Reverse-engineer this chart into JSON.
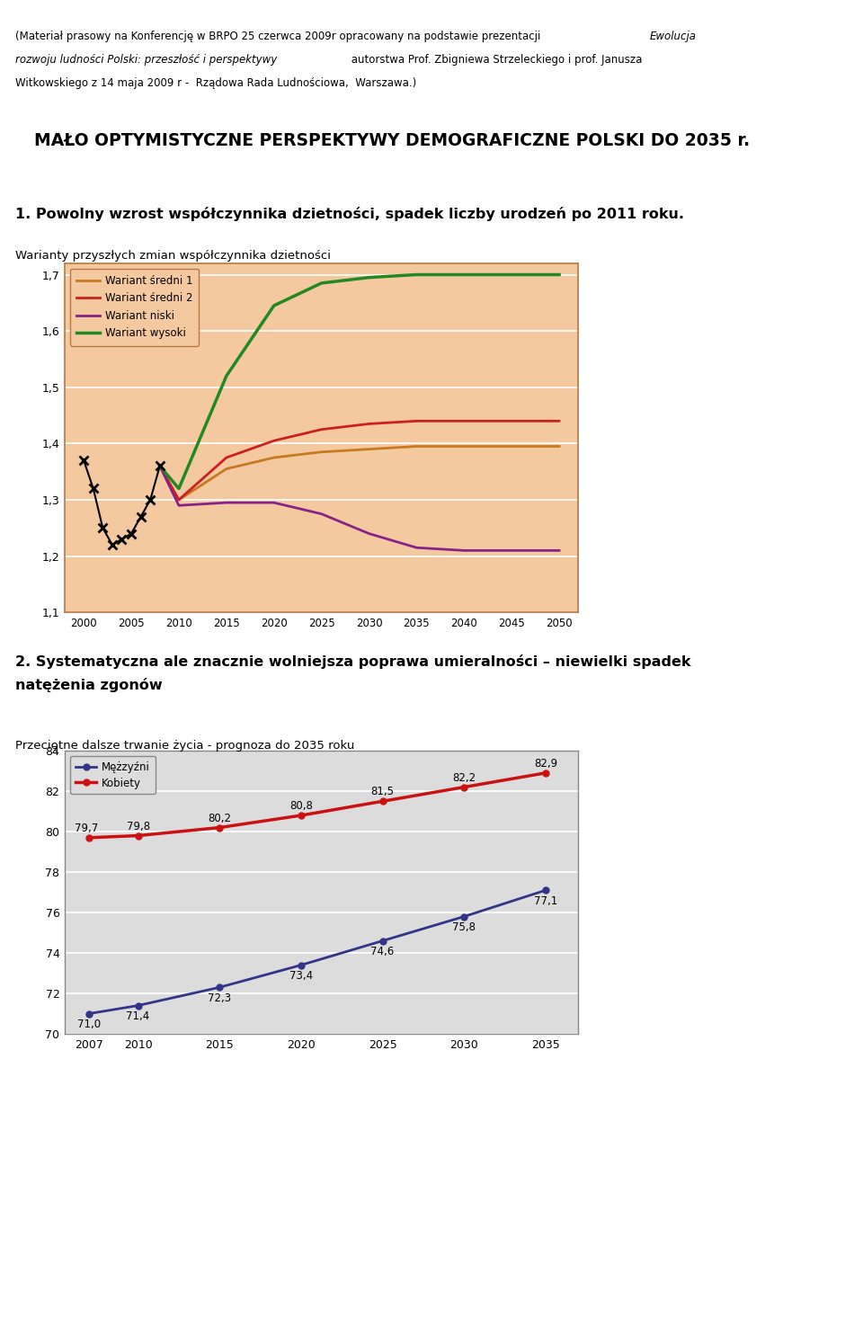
{
  "header_line1": "(Materiał prasowy na Konferencję w BRPO 25 czerwca 2009r opracowany na podstawie prezentacji ",
  "header_italic": "Ewolucja",
  "header_line2": "rozwoju ludności Polski: przeszłość i perspektywy",
  "header_line2b": " autorstwa Prof. Zbigniewa Strzeleckiego i prof. Janusza",
  "header_line3": "Witkowskiego z 14 maja 2009 r -  Rządowa Rada Ludnościowa,  Warszawa.)",
  "main_title": "MAŁO OPTYMISTYCZNE PERSPEKTYWY DEMOGRAFICZNE POLSKI DO 2035 r.",
  "section1_title": "1. Powolny wzrost współczynnika dzietności, spadek liczby urodzeń po 2011 roku.",
  "chart1_label": "Warianty przyszłych zmian współczynnika dzietności",
  "chart1_bg": "#F5C9A0",
  "chart1_border": "#B87840",
  "chart1_ylim": [
    1.1,
    1.72
  ],
  "chart1_yticks": [
    1.1,
    1.2,
    1.3,
    1.4,
    1.5,
    1.6,
    1.7
  ],
  "chart1_ytick_labels": [
    "1,1",
    "1,2",
    "1,3",
    "1,4",
    "1,5",
    "1,6",
    "1,7"
  ],
  "chart1_xlim": [
    1998,
    2052
  ],
  "chart1_xticks": [
    2000,
    2005,
    2010,
    2015,
    2020,
    2025,
    2030,
    2035,
    2040,
    2045,
    2050
  ],
  "observed_years": [
    2000,
    2001,
    2002,
    2003,
    2004,
    2005,
    2006,
    2007,
    2008
  ],
  "observed_values": [
    1.37,
    1.32,
    1.25,
    1.22,
    1.23,
    1.24,
    1.27,
    1.3,
    1.36
  ],
  "sredni1_years": [
    2008,
    2010,
    2015,
    2020,
    2025,
    2030,
    2035,
    2040,
    2045,
    2050
  ],
  "sredni1_values": [
    1.36,
    1.3,
    1.355,
    1.375,
    1.385,
    1.39,
    1.395,
    1.395,
    1.395,
    1.395
  ],
  "sredni2_years": [
    2008,
    2010,
    2015,
    2020,
    2025,
    2030,
    2035,
    2040,
    2045,
    2050
  ],
  "sredni2_values": [
    1.36,
    1.3,
    1.375,
    1.405,
    1.425,
    1.435,
    1.44,
    1.44,
    1.44,
    1.44
  ],
  "niski_years": [
    2008,
    2010,
    2015,
    2020,
    2025,
    2030,
    2035,
    2040,
    2045,
    2050
  ],
  "niski_values": [
    1.36,
    1.29,
    1.295,
    1.295,
    1.275,
    1.24,
    1.215,
    1.21,
    1.21,
    1.21
  ],
  "wysoki_years": [
    2008,
    2010,
    2015,
    2020,
    2025,
    2030,
    2035,
    2040,
    2045,
    2050
  ],
  "wysoki_values": [
    1.36,
    1.32,
    1.52,
    1.645,
    1.685,
    1.695,
    1.7,
    1.7,
    1.7,
    1.7
  ],
  "sredni1_color": "#C87820",
  "sredni2_color": "#CC2020",
  "niski_color": "#882288",
  "wysoki_color": "#228822",
  "observed_color": "#000000",
  "legend_labels": [
    "Wariant średni 1",
    "Wariant średni 2",
    "Wariant niski",
    "Wariant wysoki"
  ],
  "legend_colors": [
    "#C87820",
    "#CC2020",
    "#882288",
    "#228822"
  ],
  "section2_title_line1": "2. Systematyczna ale znacznie wolniejsza poprawa umieralności – niewielki spadek",
  "section2_title_line2": "natężenia zgonów",
  "chart2_label": "Przeciętne dalsze trwanie życia - prognoza do 2035 roku",
  "chart2_bg": "#DCDCDC",
  "chart2_ylim": [
    70,
    84
  ],
  "chart2_yticks": [
    70,
    72,
    74,
    76,
    78,
    80,
    82,
    84
  ],
  "chart2_xticks": [
    2007,
    2010,
    2015,
    2020,
    2025,
    2030,
    2035
  ],
  "men_years": [
    2007,
    2010,
    2015,
    2020,
    2025,
    2030,
    2035
  ],
  "men_values": [
    71.0,
    71.4,
    72.3,
    73.4,
    74.6,
    75.8,
    77.1
  ],
  "women_years": [
    2007,
    2010,
    2015,
    2020,
    2025,
    2030,
    2035
  ],
  "women_values": [
    79.7,
    79.8,
    80.2,
    80.8,
    81.5,
    82.2,
    82.9
  ],
  "men_color": "#333388",
  "women_color": "#CC1111",
  "men_label": "Mężzyźni",
  "women_label": "Kobiety"
}
